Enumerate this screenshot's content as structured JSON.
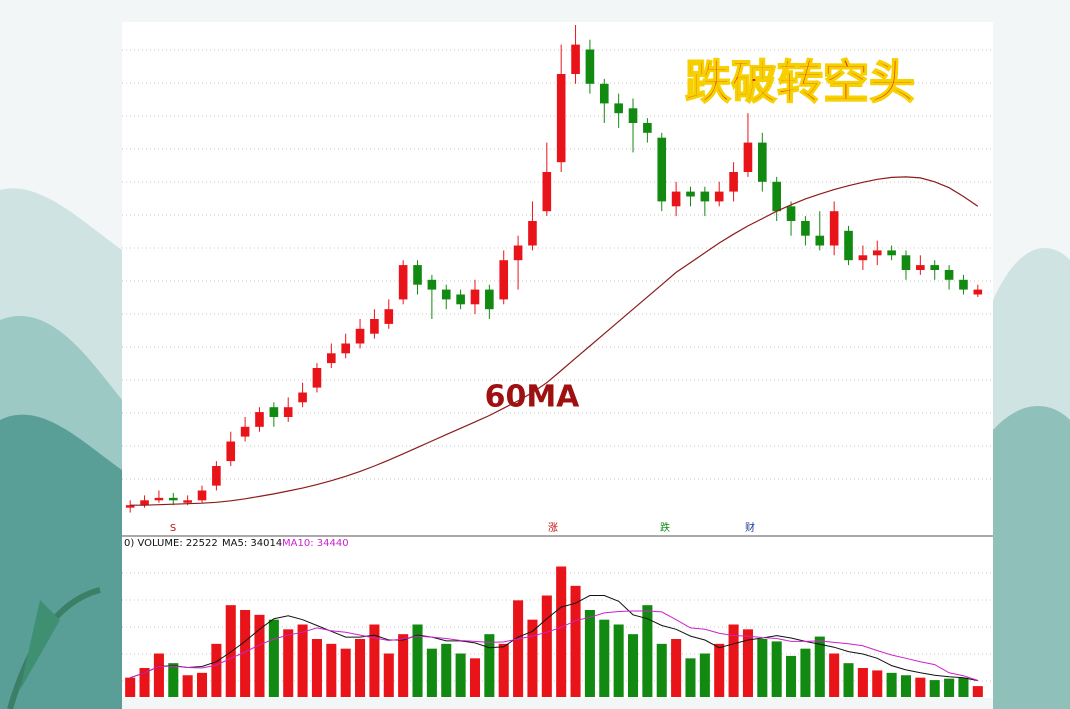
{
  "chart_data": {
    "type": "candlestick",
    "title": "跌破转空头",
    "annotation": "60MA",
    "ylim": [
      0,
      100
    ],
    "open": [
      1.5,
      2,
      3,
      3.5,
      2.5,
      3,
      6,
      11,
      16,
      18,
      22,
      20,
      23,
      26,
      31,
      33,
      35,
      37,
      39,
      44,
      51,
      48,
      46,
      45,
      43,
      46,
      44,
      52,
      55,
      62,
      72,
      90,
      95,
      88,
      84,
      83,
      80,
      77,
      63,
      66,
      66,
      64,
      66,
      70,
      76,
      68,
      63,
      60,
      57,
      55,
      58,
      52,
      53,
      54,
      53,
      50,
      51,
      50,
      48,
      45
    ],
    "close": [
      2,
      3,
      3.5,
      3,
      3,
      5,
      10,
      15,
      18,
      21,
      20,
      22,
      25,
      30,
      33,
      35,
      38,
      40,
      42,
      51,
      47,
      46,
      44,
      43,
      46,
      42,
      52,
      55,
      60,
      70,
      90,
      96,
      88,
      84,
      82,
      80,
      78,
      64,
      66,
      65,
      64,
      66,
      70,
      76,
      68,
      62,
      60,
      57,
      55,
      62,
      52,
      53,
      54,
      53,
      50,
      51,
      50,
      48,
      46,
      46
    ],
    "high": [
      3,
      4,
      5,
      4.5,
      4,
      6,
      11,
      17,
      20,
      22,
      23,
      24,
      27,
      31,
      35,
      37,
      40,
      42,
      44,
      52,
      52,
      49,
      47,
      46,
      48,
      47,
      54,
      57,
      64,
      76,
      96,
      100,
      97,
      89,
      86,
      85,
      81,
      78,
      68,
      67,
      67,
      68,
      72,
      82,
      78,
      69,
      64,
      61,
      62,
      64,
      59,
      55,
      56,
      55,
      54,
      53,
      52,
      51,
      49,
      47
    ],
    "low": [
      0.5,
      1.5,
      2.5,
      2,
      2,
      2.5,
      5,
      10,
      15,
      17,
      18,
      19,
      22,
      25,
      30,
      32,
      34,
      36,
      38,
      43,
      45,
      40,
      42,
      42,
      41,
      40,
      43,
      46,
      54,
      61,
      70,
      88,
      86,
      80,
      79,
      74,
      76,
      62,
      61,
      63,
      61,
      63,
      64,
      69,
      66,
      60,
      57,
      55,
      54,
      53,
      51,
      50,
      51,
      52,
      48,
      49,
      48,
      46,
      45,
      44.5
    ],
    "ma60": [
      2,
      2,
      2.1,
      2.2,
      2.3,
      2.4,
      2.6,
      2.9,
      3.3,
      3.8,
      4.3,
      4.9,
      5.5,
      6.2,
      7,
      7.9,
      8.9,
      10,
      11.2,
      12.5,
      13.8,
      15.1,
      16.4,
      17.7,
      19,
      20.3,
      21.8,
      23.3,
      25,
      27,
      29.5,
      32,
      34.5,
      37,
      39.5,
      42,
      44.5,
      47,
      49.5,
      51.5,
      53.5,
      55.5,
      57.3,
      59,
      60.5,
      62,
      63.3,
      64.5,
      65.5,
      66.4,
      67.2,
      67.9,
      68.5,
      68.9,
      69,
      68.8,
      68,
      66.8,
      65,
      63
    ],
    "up_color": "#e8141a",
    "down_color": "#128a12",
    "ma60_color": "#8b1c1c",
    "volume_label": "0) VOLUME: 22522",
    "ma5_label": "MA5: 34014",
    "ma10_label": "MA10: 34440",
    "vlim": [
      0,
      300000
    ],
    "volume": [
      40000,
      60000,
      90000,
      70000,
      45000,
      50000,
      110000,
      190000,
      180000,
      170000,
      160000,
      140000,
      150000,
      120000,
      110000,
      100000,
      120000,
      150000,
      90000,
      130000,
      150000,
      100000,
      110000,
      90000,
      80000,
      130000,
      110000,
      200000,
      160000,
      210000,
      270000,
      230000,
      180000,
      160000,
      150000,
      130000,
      190000,
      110000,
      120000,
      80000,
      90000,
      110000,
      150000,
      140000,
      120000,
      115000,
      85000,
      100000,
      125000,
      90000,
      70000,
      60000,
      55000,
      50000,
      45000,
      40000,
      35000,
      38000,
      40000,
      22522
    ],
    "vol_ma5": [
      40000,
      50000,
      63000,
      65000,
      61000,
      63000,
      73000,
      93000,
      115000,
      140000,
      162000,
      168000,
      160000,
      148000,
      136000,
      124000,
      124000,
      128000,
      118000,
      118000,
      128000,
      124000,
      116000,
      116000,
      112000,
      102000,
      104000,
      124000,
      136000,
      162000,
      186000,
      194000,
      210000,
      210000,
      198000,
      170000,
      162000,
      148000,
      140000,
      126000,
      118000,
      102000,
      110000,
      118000,
      122000,
      127000,
      122000,
      115000,
      109000,
      103000,
      94000,
      89000,
      80000,
      65000,
      56000,
      50000,
      45000,
      42000,
      40000,
      34014
    ],
    "vol_ma10": [
      40000,
      50000,
      63000,
      64000,
      61000,
      60000,
      66000,
      80000,
      93000,
      108000,
      120000,
      128000,
      134000,
      143000,
      137000,
      134000,
      128000,
      122000,
      117000,
      120000,
      126000,
      124000,
      121000,
      117000,
      115000,
      113000,
      114000,
      120000,
      126000,
      134000,
      144000,
      158000,
      165000,
      174000,
      177000,
      178000,
      178000,
      176000,
      160000,
      143000,
      140000,
      132000,
      127000,
      126000,
      123000,
      121000,
      115000,
      115000,
      116000,
      113000,
      110000,
      106000,
      96000,
      87000,
      80000,
      73000,
      67000,
      50000,
      44000,
      34440
    ],
    "ma5_color": "#111111",
    "ma10_color": "#cc22cc",
    "markers": [
      "S",
      "涨",
      "跌",
      "财"
    ],
    "grid": true
  }
}
